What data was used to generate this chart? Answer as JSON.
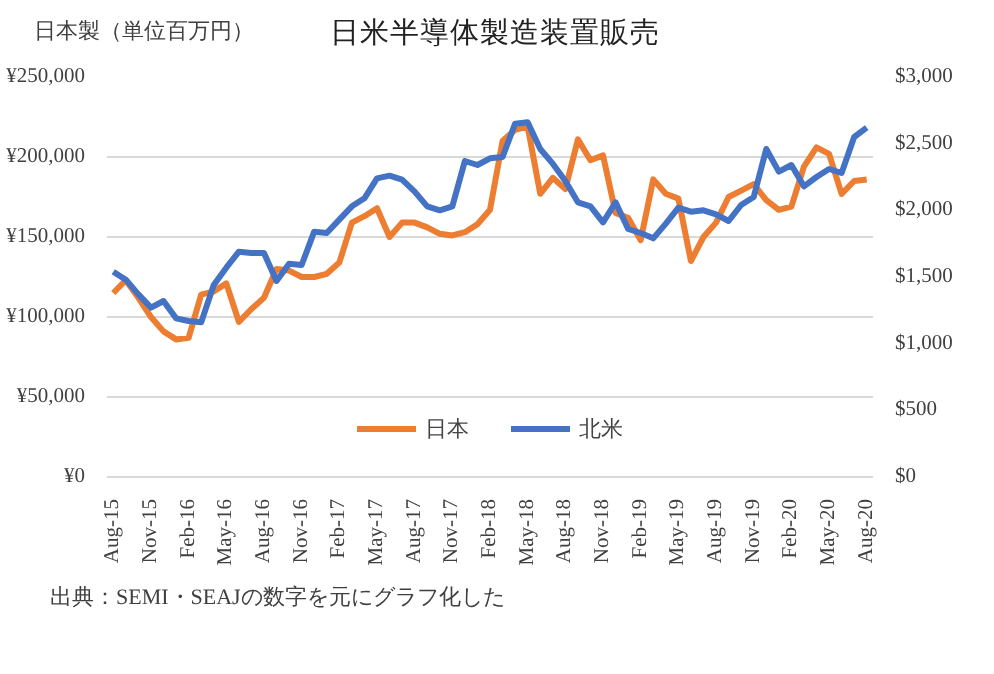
{
  "chart_data": {
    "type": "line",
    "title": "日米半導体製造装置販売",
    "ylabel": "日本製（単位百万円）",
    "categories": [
      "Aug-15",
      null,
      null,
      "Nov-15",
      null,
      null,
      "Feb-16",
      null,
      null,
      "May-16",
      null,
      null,
      "Aug-16",
      null,
      null,
      "Nov-16",
      null,
      null,
      "Feb-17",
      null,
      null,
      "May-17",
      null,
      null,
      "Aug-17",
      null,
      null,
      "Nov-17",
      null,
      null,
      "Feb-18",
      null,
      null,
      "May-18",
      null,
      null,
      "Aug-18",
      null,
      null,
      "Nov-18",
      null,
      null,
      "Feb-19",
      null,
      null,
      "May-19",
      null,
      null,
      "Aug-19",
      null,
      null,
      "Nov-19",
      null,
      null,
      "Feb-20",
      null,
      null,
      "May-20",
      null,
      null,
      "Aug-20"
    ],
    "series": [
      {
        "name": "日本",
        "color": "#ed7d31",
        "values": [
          115000,
          123000,
          112000,
          100000,
          91000,
          86000,
          87000,
          114000,
          116000,
          121000,
          97000,
          105000,
          112000,
          130000,
          129000,
          125000,
          125000,
          127000,
          134000,
          159000,
          163000,
          168000,
          150000,
          159000,
          159000,
          156000,
          152000,
          151000,
          153000,
          158000,
          167000,
          210000,
          217000,
          219000,
          177000,
          187000,
          180000,
          211000,
          198000,
          201000,
          165000,
          162000,
          148000,
          186000,
          177000,
          174000,
          135000,
          150000,
          159000,
          175000,
          179000,
          183000,
          173000,
          167000,
          169000,
          194000,
          206000,
          202000,
          177000,
          185000,
          186000
        ]
      },
      {
        "name": "北米",
        "color": "#4472c4",
        "axis": "y2",
        "values": [
          1540,
          1480,
          1370,
          1270,
          1320,
          1190,
          1170,
          1160,
          1440,
          1570,
          1690,
          1680,
          1680,
          1470,
          1600,
          1590,
          1840,
          1830,
          1930,
          2030,
          2090,
          2240,
          2260,
          2230,
          2140,
          2030,
          2000,
          2030,
          2370,
          2340,
          2390,
          2400,
          2650,
          2660,
          2460,
          2350,
          2220,
          2060,
          2030,
          1910,
          2060,
          1860,
          1830,
          1790,
          1900,
          2020,
          1990,
          2000,
          1970,
          1920,
          2040,
          2100,
          2460,
          2290,
          2340,
          2180,
          2250,
          2310,
          2280,
          2550,
          2620
        ]
      }
    ],
    "ylim": [
      0,
      250000
    ],
    "yticks": [
      {
        "value": 0,
        "label": "¥0"
      },
      {
        "value": 50000,
        "label": "¥50,000"
      },
      {
        "value": 100000,
        "label": "¥100,000"
      },
      {
        "value": 150000,
        "label": "¥150,000"
      },
      {
        "value": 200000,
        "label": "¥200,000"
      },
      {
        "value": 250000,
        "label": "¥250,000"
      }
    ],
    "y2lim": [
      0,
      3000
    ],
    "y2ticks": [
      {
        "value": 0,
        "label": "$0"
      },
      {
        "value": 500,
        "label": "$500"
      },
      {
        "value": 1000,
        "label": "$1,000"
      },
      {
        "value": 1500,
        "label": "$1,500"
      },
      {
        "value": 2000,
        "label": "$2,000"
      },
      {
        "value": 2500,
        "label": "$2,500"
      },
      {
        "value": 3000,
        "label": "$3,000"
      }
    ],
    "grid": "y",
    "legend": "bottom",
    "marker": "none",
    "line_style": "solid",
    "annotations": [
      "出典：SEMI・SEAJの数字を元にグラフ化した"
    ]
  }
}
